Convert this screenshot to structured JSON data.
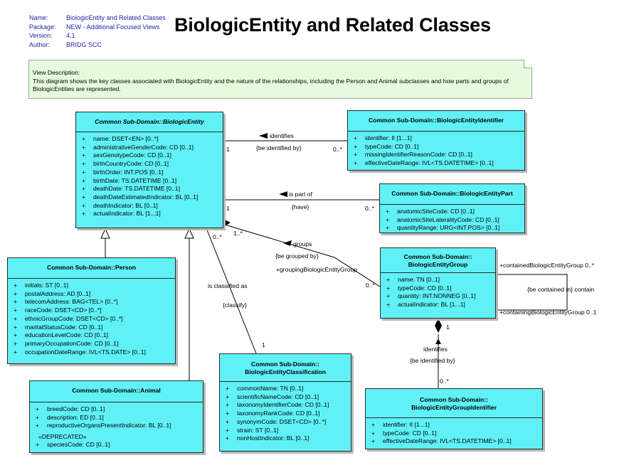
{
  "meta": {
    "name_key": "Name:",
    "name_val": "BiologicEntity and Related Classes",
    "package_key": "Package:",
    "package_val": "NEW - Additional Focused Views",
    "version_key": "Version:",
    "version_val": "4.1",
    "author_key": "Author:",
    "author_val": "BRIDG SCC"
  },
  "title": "BiologicEntity and Related Classes",
  "note": {
    "line1": "View Description:",
    "line2": "This diagram shows the key classes associated with BiologicEntity and the nature of the relationships, including the Person and Animal subclasses and how parts and groups of BiologicEntities are represented."
  },
  "classes": {
    "biologic_entity": {
      "header": "Common Sub-Domain::BiologicEntity",
      "attrs": [
        "name: DSET<EN> [0..*]",
        "administrativeGenderCode: CD [0..1]",
        "sexGenotypeCode: CD [0..1]",
        "birthCountryCode: CD [0..1]",
        "birthOrder: INT.POS [0..1]",
        "birthDate: TS.DATETIME [0..1]",
        "deathDate: TS.DATETIME [0..1]",
        "deathDateEstimatedIndicator: BL [0..1]",
        "deathIndicator: BL [0..1]",
        "actualIndicator: BL [1...1]"
      ]
    },
    "identifier": {
      "header": "Common Sub-Domain::BiologicEntityIdentifier",
      "attrs": [
        "identifier: II [1...1]",
        "typeCode: CD [0..1]",
        "missingIdentifierReasonCode: CD [0..1]",
        "effectiveDateRange: IVL<TS.DATETIME> [0..1]"
      ]
    },
    "part": {
      "header": "Common Sub-Domain::BiologicEntityPart",
      "attrs": [
        "anatomicSiteCode: CD [0..1]",
        "anatomicSiteLateralityCode: CD [0..1]",
        "quantityRange: URG<INT.POS> [0..1]"
      ]
    },
    "person": {
      "header": "Common Sub-Domain::Person",
      "attrs": [
        "initials: ST [0..1]",
        "postalAddress: AD [0..1]",
        "telecomAddress: BAG<TEL> [0..*]",
        "raceCode: DSET<CD> [0..*]",
        "ethnicGroupCode: DSET<CD> [0..*]",
        "maritalStatusCode: CD [0..1]",
        "educationLevelCode: CD [0..1]",
        "primaryOccupationCode: CD [0..1]",
        "occupationDateRange: IVL<TS.DATE> [0..1]"
      ]
    },
    "group": {
      "header1": "Common Sub-Domain::",
      "header2": "BiologicEntityGroup",
      "attrs": [
        "name: TN [0..1]",
        "typeCode: CD [0..1]",
        "quantity: INT.NONNEG [0..1]",
        "actualIndicator: BL [1...1]"
      ]
    },
    "animal": {
      "header": "Common Sub-Domain::Animal",
      "attrs": [
        "breedCode: CD [0..1]",
        "description: ED [0..1]",
        "reproductiveOrgansPresentIndicator: BL [0..1]"
      ],
      "stereotype": "«DEPRECATED»",
      "deprecated_attrs": [
        "speciesCode: CD [0..1]"
      ]
    },
    "classification": {
      "header1": "Common Sub-Domain::",
      "header2": "BiologicEntityClassification",
      "attrs": [
        "commonName: TN [0..1]",
        "scientificNameCode: CD [0..1]",
        "taxonomyIdentifierCode: CD [0..1]",
        "taxonomyRankCode: CD [0..1]",
        "synonymCode: DSET<CD> [0..*]",
        "strain: ST [0..1]",
        "nonHostIndicator: BL [0..1]"
      ]
    },
    "group_identifier": {
      "header1": "Common Sub-Domain::",
      "header2": "BiologicEntityGroupIdentifier",
      "attrs": [
        "identifier: II [1...1]",
        "typeCode: CD [0..1]",
        "effectiveDateRange: IVL<TS.DATETIME> [0..1]"
      ]
    }
  },
  "attr_prefix": "+",
  "associations": {
    "identifies": "identifies",
    "be_identified_by": "{be identified by}",
    "ident_mult_left": "1",
    "ident_mult_right": "0..*",
    "is_part_of": "is part of",
    "have": "{have}",
    "part_mult_left": "1",
    "part_mult_right": "0..*",
    "groups": "groups",
    "be_grouped_by": "{be grouped by}",
    "grouping_role": "+groupingBiologicEntityGroup",
    "group_mult_left": "1..*",
    "group_mult_right": "0..*",
    "is_classified_as": "is classified as",
    "classify": "{classify}",
    "class_mult_top": "0..*",
    "class_mult_bottom": "1",
    "contained_role": "+containedBiologicEntityGroup 0..*",
    "be_contained_in": "{be contained in} contain",
    "containing_role": "+containingBiologicEntityGroup 0..1",
    "grp_identifies": "identifies",
    "grp_be_identified_by": "{be identified by}",
    "grp_mult_top": "1",
    "grp_mult_bottom": "0..*"
  }
}
